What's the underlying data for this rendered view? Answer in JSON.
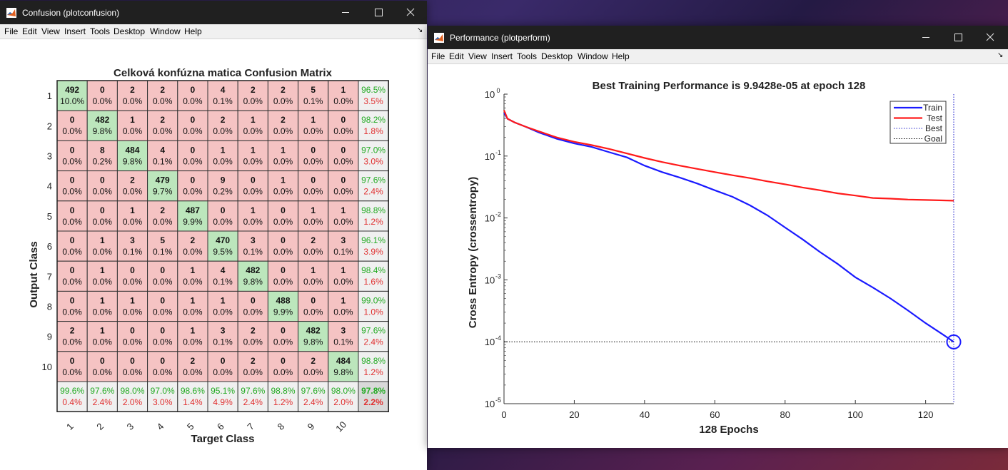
{
  "confusion_window": {
    "title": "Confusion (plotconfusion)",
    "menu": [
      "File",
      "Edit",
      "View",
      "Insert",
      "Tools",
      "Desktop",
      "Window",
      "Help"
    ],
    "dock_icon": "dock-arrow-icon"
  },
  "performance_window": {
    "title": "Performance (plotperform)",
    "menu": [
      "File",
      "Edit",
      "View",
      "Insert",
      "Tools",
      "Desktop",
      "Window",
      "Help"
    ],
    "dock_icon": "dock-arrow-icon"
  },
  "window_controls": {
    "minimize": "—",
    "maximize": "☐",
    "close": "✕"
  },
  "colors": {
    "correct_cell": "#bce6bc",
    "wrong_cell": "#f5c3c3",
    "total_cell": "#d9d9d9",
    "summary_cell": "#f0f0f0",
    "good_text": "#22aa22",
    "bad_text": "#e03030",
    "train": "#1a1aff",
    "test": "#ff1a1a"
  },
  "chart_data": [
    {
      "type": "heatmap",
      "title": "Celková konfúzna matica Confusion Matrix",
      "xlabel": "Target Class",
      "ylabel": "Output Class",
      "row_labels": [
        "1",
        "2",
        "3",
        "4",
        "5",
        "6",
        "7",
        "8",
        "9",
        "10"
      ],
      "col_labels": [
        "1",
        "2",
        "3",
        "4",
        "5",
        "6",
        "7",
        "8",
        "9",
        "10"
      ],
      "counts": [
        [
          492,
          0,
          2,
          2,
          0,
          4,
          2,
          2,
          5,
          1
        ],
        [
          0,
          482,
          1,
          2,
          0,
          2,
          1,
          2,
          1,
          0
        ],
        [
          0,
          8,
          484,
          4,
          0,
          1,
          1,
          1,
          0,
          0
        ],
        [
          0,
          0,
          2,
          479,
          0,
          9,
          0,
          1,
          0,
          0
        ],
        [
          0,
          0,
          1,
          2,
          487,
          0,
          1,
          0,
          1,
          1
        ],
        [
          0,
          1,
          3,
          5,
          2,
          470,
          3,
          0,
          2,
          3
        ],
        [
          0,
          1,
          0,
          0,
          1,
          4,
          482,
          0,
          1,
          1
        ],
        [
          0,
          1,
          1,
          0,
          1,
          1,
          0,
          488,
          0,
          1
        ],
        [
          2,
          1,
          0,
          0,
          1,
          3,
          2,
          0,
          482,
          3
        ],
        [
          0,
          0,
          0,
          0,
          2,
          0,
          2,
          0,
          2,
          484
        ]
      ],
      "percents": [
        [
          "10.0%",
          "0.0%",
          "0.0%",
          "0.0%",
          "0.0%",
          "0.1%",
          "0.0%",
          "0.0%",
          "0.1%",
          "0.0%"
        ],
        [
          "0.0%",
          "9.8%",
          "0.0%",
          "0.0%",
          "0.0%",
          "0.0%",
          "0.0%",
          "0.0%",
          "0.0%",
          "0.0%"
        ],
        [
          "0.0%",
          "0.2%",
          "9.8%",
          "0.1%",
          "0.0%",
          "0.0%",
          "0.0%",
          "0.0%",
          "0.0%",
          "0.0%"
        ],
        [
          "0.0%",
          "0.0%",
          "0.0%",
          "9.7%",
          "0.0%",
          "0.2%",
          "0.0%",
          "0.0%",
          "0.0%",
          "0.0%"
        ],
        [
          "0.0%",
          "0.0%",
          "0.0%",
          "0.0%",
          "9.9%",
          "0.0%",
          "0.0%",
          "0.0%",
          "0.0%",
          "0.0%"
        ],
        [
          "0.0%",
          "0.0%",
          "0.1%",
          "0.1%",
          "0.0%",
          "9.5%",
          "0.1%",
          "0.0%",
          "0.0%",
          "0.1%"
        ],
        [
          "0.0%",
          "0.0%",
          "0.0%",
          "0.0%",
          "0.0%",
          "0.1%",
          "9.8%",
          "0.0%",
          "0.0%",
          "0.0%"
        ],
        [
          "0.0%",
          "0.0%",
          "0.0%",
          "0.0%",
          "0.0%",
          "0.0%",
          "0.0%",
          "9.9%",
          "0.0%",
          "0.0%"
        ],
        [
          "0.0%",
          "0.0%",
          "0.0%",
          "0.0%",
          "0.0%",
          "0.1%",
          "0.0%",
          "0.0%",
          "9.8%",
          "0.1%"
        ],
        [
          "0.0%",
          "0.0%",
          "0.0%",
          "0.0%",
          "0.0%",
          "0.0%",
          "0.0%",
          "0.0%",
          "0.0%",
          "9.8%"
        ]
      ],
      "row_summary": [
        [
          "96.5%",
          "3.5%"
        ],
        [
          "98.2%",
          "1.8%"
        ],
        [
          "97.0%",
          "3.0%"
        ],
        [
          "97.6%",
          "2.4%"
        ],
        [
          "98.8%",
          "1.2%"
        ],
        [
          "96.1%",
          "3.9%"
        ],
        [
          "98.4%",
          "1.6%"
        ],
        [
          "99.0%",
          "1.0%"
        ],
        [
          "97.6%",
          "2.4%"
        ],
        [
          "98.8%",
          "1.2%"
        ]
      ],
      "col_summary": [
        [
          "99.6%",
          "0.4%"
        ],
        [
          "97.6%",
          "2.4%"
        ],
        [
          "98.0%",
          "2.0%"
        ],
        [
          "97.0%",
          "3.0%"
        ],
        [
          "98.6%",
          "1.4%"
        ],
        [
          "95.1%",
          "4.9%"
        ],
        [
          "97.6%",
          "2.4%"
        ],
        [
          "98.8%",
          "1.2%"
        ],
        [
          "97.6%",
          "2.4%"
        ],
        [
          "98.0%",
          "2.0%"
        ]
      ],
      "total": [
        "97.8%",
        "2.2%"
      ]
    },
    {
      "type": "line",
      "title": "Best Training Performance is 9.9428e-05 at epoch 128",
      "xlabel": "128 Epochs",
      "ylabel": "Cross Entropy  (crossentropy)",
      "xlim": [
        0,
        128
      ],
      "ylim": [
        1e-05,
        1
      ],
      "yscale": "log",
      "x_ticks": [
        0,
        20,
        40,
        60,
        80,
        100,
        120
      ],
      "y_ticks": [
        {
          "base": "10",
          "exp": "0",
          "value": 1
        },
        {
          "base": "10",
          "exp": "-1",
          "value": 0.1
        },
        {
          "base": "10",
          "exp": "-2",
          "value": 0.01
        },
        {
          "base": "10",
          "exp": "-3",
          "value": 0.001
        },
        {
          "base": "10",
          "exp": "-4",
          "value": 0.0001
        },
        {
          "base": "10",
          "exp": "-5",
          "value": 1e-05
        }
      ],
      "legend_position": "top-right",
      "series": [
        {
          "name": "Train",
          "style": "solid",
          "color": "#1a1aff",
          "x": [
            0,
            1,
            3,
            6,
            10,
            15,
            20,
            25,
            30,
            35,
            40,
            45,
            50,
            55,
            60,
            65,
            70,
            75,
            80,
            85,
            90,
            95,
            100,
            105,
            110,
            115,
            120,
            125,
            128
          ],
          "y": [
            0.5,
            0.4,
            0.35,
            0.3,
            0.24,
            0.19,
            0.16,
            0.14,
            0.115,
            0.095,
            0.07,
            0.055,
            0.045,
            0.036,
            0.028,
            0.022,
            0.016,
            0.011,
            0.007,
            0.0045,
            0.0028,
            0.0018,
            0.0011,
            0.00075,
            0.0005,
            0.00032,
            0.0002,
            0.00013,
            9.9428e-05
          ]
        },
        {
          "name": "Test",
          "style": "solid",
          "color": "#ff1a1a",
          "x": [
            0,
            1,
            3,
            6,
            10,
            15,
            20,
            25,
            30,
            35,
            40,
            45,
            50,
            55,
            60,
            65,
            70,
            75,
            80,
            85,
            90,
            95,
            100,
            105,
            110,
            115,
            120,
            125,
            128
          ],
          "y": [
            0.55,
            0.4,
            0.35,
            0.3,
            0.25,
            0.2,
            0.17,
            0.15,
            0.13,
            0.11,
            0.093,
            0.08,
            0.07,
            0.062,
            0.055,
            0.049,
            0.044,
            0.039,
            0.035,
            0.031,
            0.028,
            0.025,
            0.023,
            0.021,
            0.0205,
            0.0198,
            0.0195,
            0.0192,
            0.019
          ]
        },
        {
          "name": "Best",
          "style": "dotted",
          "color": "#2020cc",
          "vertical_x": 128
        },
        {
          "name": "Goal",
          "style": "dotted",
          "color": "#000000",
          "horizontal_y": 0.0001
        }
      ],
      "best_marker": {
        "x": 128,
        "y": 9.9428e-05
      }
    }
  ]
}
